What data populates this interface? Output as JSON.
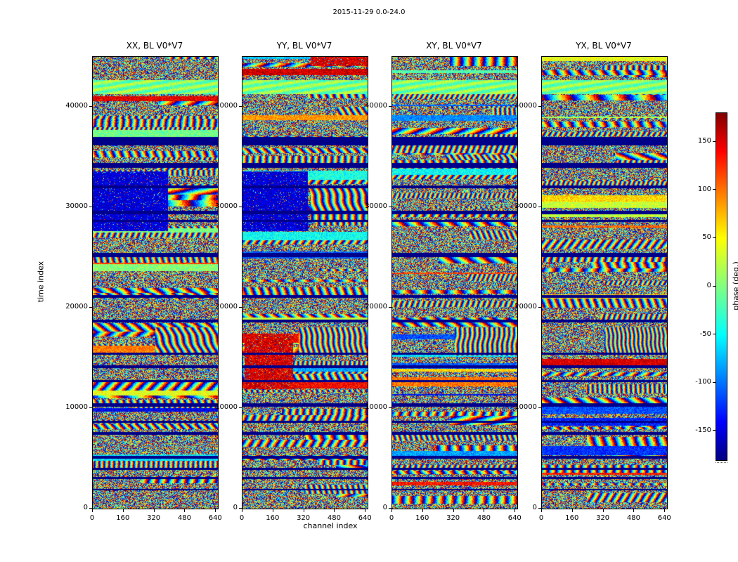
{
  "chart_data": {
    "type": "heatmap",
    "suptitle": "2015-11-29 0.0-24.0",
    "xlabel": "channel index",
    "ylabel": "time index",
    "xlim": [
      0,
      650
    ],
    "ylim": [
      0,
      45000
    ],
    "xticks": [
      0,
      160,
      320,
      480,
      640
    ],
    "yticks": [
      0,
      10000,
      20000,
      30000,
      40000
    ],
    "panels": [
      {
        "title": "XX, BL V0*V7"
      },
      {
        "title": "YY, BL V0*V7"
      },
      {
        "title": "XY, BL V0*V7"
      },
      {
        "title": "YX, BL V0*V7"
      }
    ],
    "colorbar": {
      "label": "phase (deg.)",
      "ticks": [
        -150,
        -100,
        -50,
        0,
        50,
        100,
        150
      ],
      "lim": [
        -180,
        180
      ],
      "colormap": "jet"
    },
    "description": "Waterfall plots of interferometric visibility phase (deg) vs time index and channel index for four polarization products of baseline V0*V7; random-looking phase noise with coherent fringe patches; dark blue horizontal bands are flagged/low-phase times shared across all four panels.",
    "texture": {
      "calm_green_band": [
        0.052,
        0.082
      ],
      "flag_bands": [
        [
          0.178,
          12
        ],
        [
          0.236,
          7
        ],
        [
          0.285,
          4
        ],
        [
          0.341,
          5
        ],
        [
          0.362,
          3
        ],
        [
          0.435,
          6
        ],
        [
          0.528,
          4
        ],
        [
          0.583,
          4
        ],
        [
          0.655,
          3
        ],
        [
          0.683,
          4
        ],
        [
          0.716,
          3
        ],
        [
          0.768,
          5
        ],
        [
          0.806,
          3
        ],
        [
          0.831,
          4
        ],
        [
          0.884,
          4
        ],
        [
          0.91,
          3
        ],
        [
          0.931,
          3
        ],
        [
          0.957,
          2
        ]
      ],
      "panel_effects": [
        {
          "seed": 101,
          "blue_blocks": [
            [
              0.255,
              0.385,
              0.0,
              0.6
            ]
          ],
          "hot_blocks": [],
          "fringe_blocks": [
            [
              0.6,
              0.66,
              0.5,
              1.0
            ]
          ]
        },
        {
          "seed": 202,
          "blue_blocks": [
            [
              0.255,
              0.385,
              0.0,
              0.52
            ]
          ],
          "hot_blocks": [
            [
              0.615,
              0.735,
              0.02,
              0.4
            ],
            [
              0.0,
              0.02,
              0.55,
              1.0
            ]
          ],
          "fringe_blocks": [
            [
              0.29,
              0.36,
              0.55,
              1.0
            ],
            [
              0.6,
              0.66,
              0.45,
              1.0
            ]
          ]
        },
        {
          "seed": 303,
          "blue_blocks": [],
          "hot_blocks": [],
          "fringe_blocks": [
            [
              0.6,
              0.66,
              0.5,
              1.0
            ]
          ]
        },
        {
          "seed": 404,
          "blue_blocks": [],
          "hot_blocks": [],
          "fringe_blocks": [
            [
              0.6,
              0.66,
              0.5,
              1.0
            ]
          ]
        }
      ]
    }
  }
}
